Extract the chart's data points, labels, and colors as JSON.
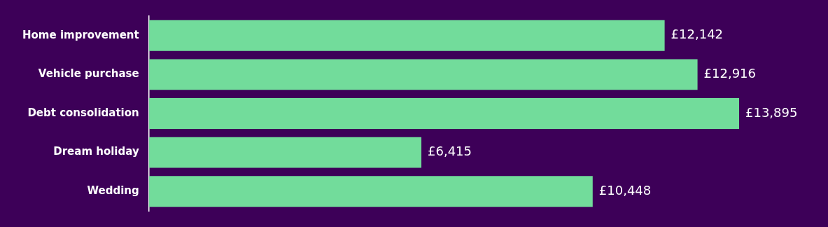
{
  "chart_data": {
    "type": "bar",
    "orientation": "horizontal",
    "categories": [
      "Home improvement",
      "Vehicle purchase",
      "Debt consolidation",
      "Dream holiday",
      "Wedding"
    ],
    "values": [
      12142,
      12916,
      13895,
      6415,
      10448
    ],
    "color": "#72dc9b",
    "value_labels": [
      "£12,142",
      "£12,916",
      "£13,895",
      "£6,415",
      "£10,448"
    ]
  }
}
